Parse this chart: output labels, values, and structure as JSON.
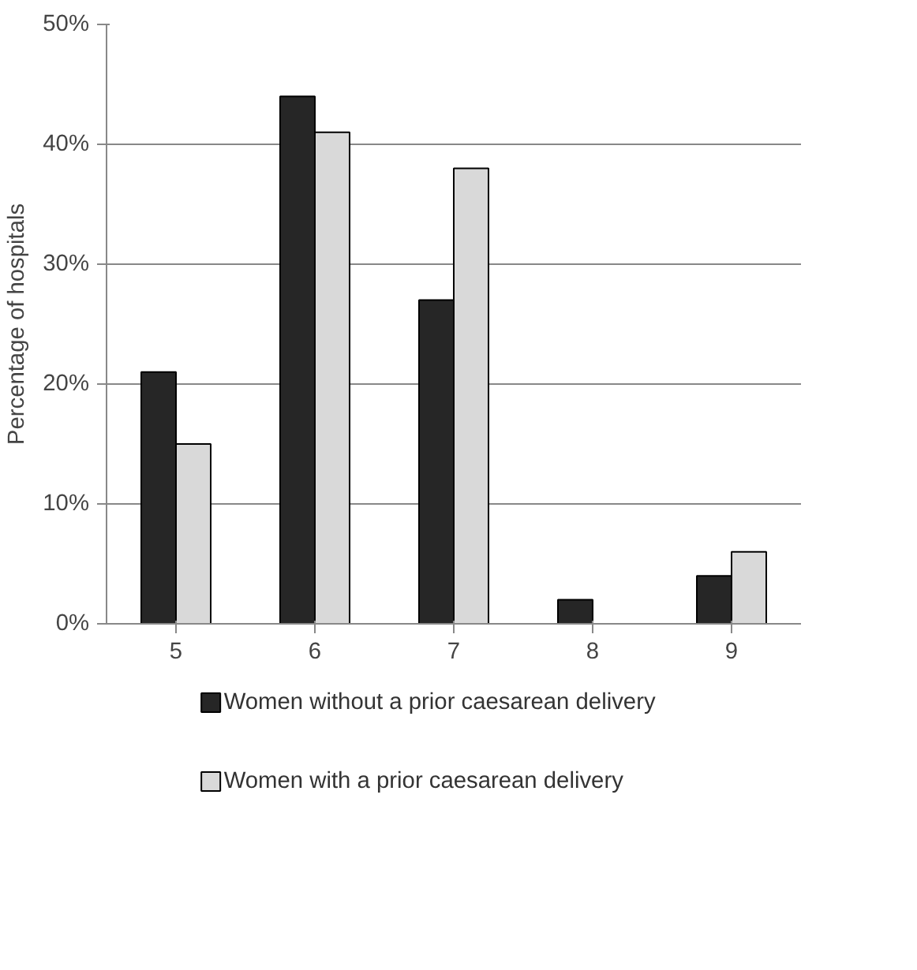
{
  "chart_data": {
    "type": "bar",
    "categories": [
      "5",
      "6",
      "7",
      "8",
      "9"
    ],
    "ylabel": "Percentage of hospitals",
    "series": [
      {
        "name": "Women without a prior caesarean delivery",
        "color": "#262626",
        "values": [
          21,
          44,
          27,
          2,
          4
        ]
      },
      {
        "name": "Women with a prior caesarean delivery",
        "color": "#d9d9d9",
        "values": [
          15,
          41,
          38,
          null,
          6
        ]
      }
    ],
    "ylim": [
      0,
      50
    ],
    "yticks": [
      {
        "value": 0,
        "label": "0%"
      },
      {
        "value": 10,
        "label": "10%"
      },
      {
        "value": 20,
        "label": "20%"
      },
      {
        "value": 30,
        "label": "30%"
      },
      {
        "value": 40,
        "label": "40%"
      },
      {
        "value": 50,
        "label": "50%"
      }
    ],
    "grid": "y",
    "legend": "bottom"
  }
}
